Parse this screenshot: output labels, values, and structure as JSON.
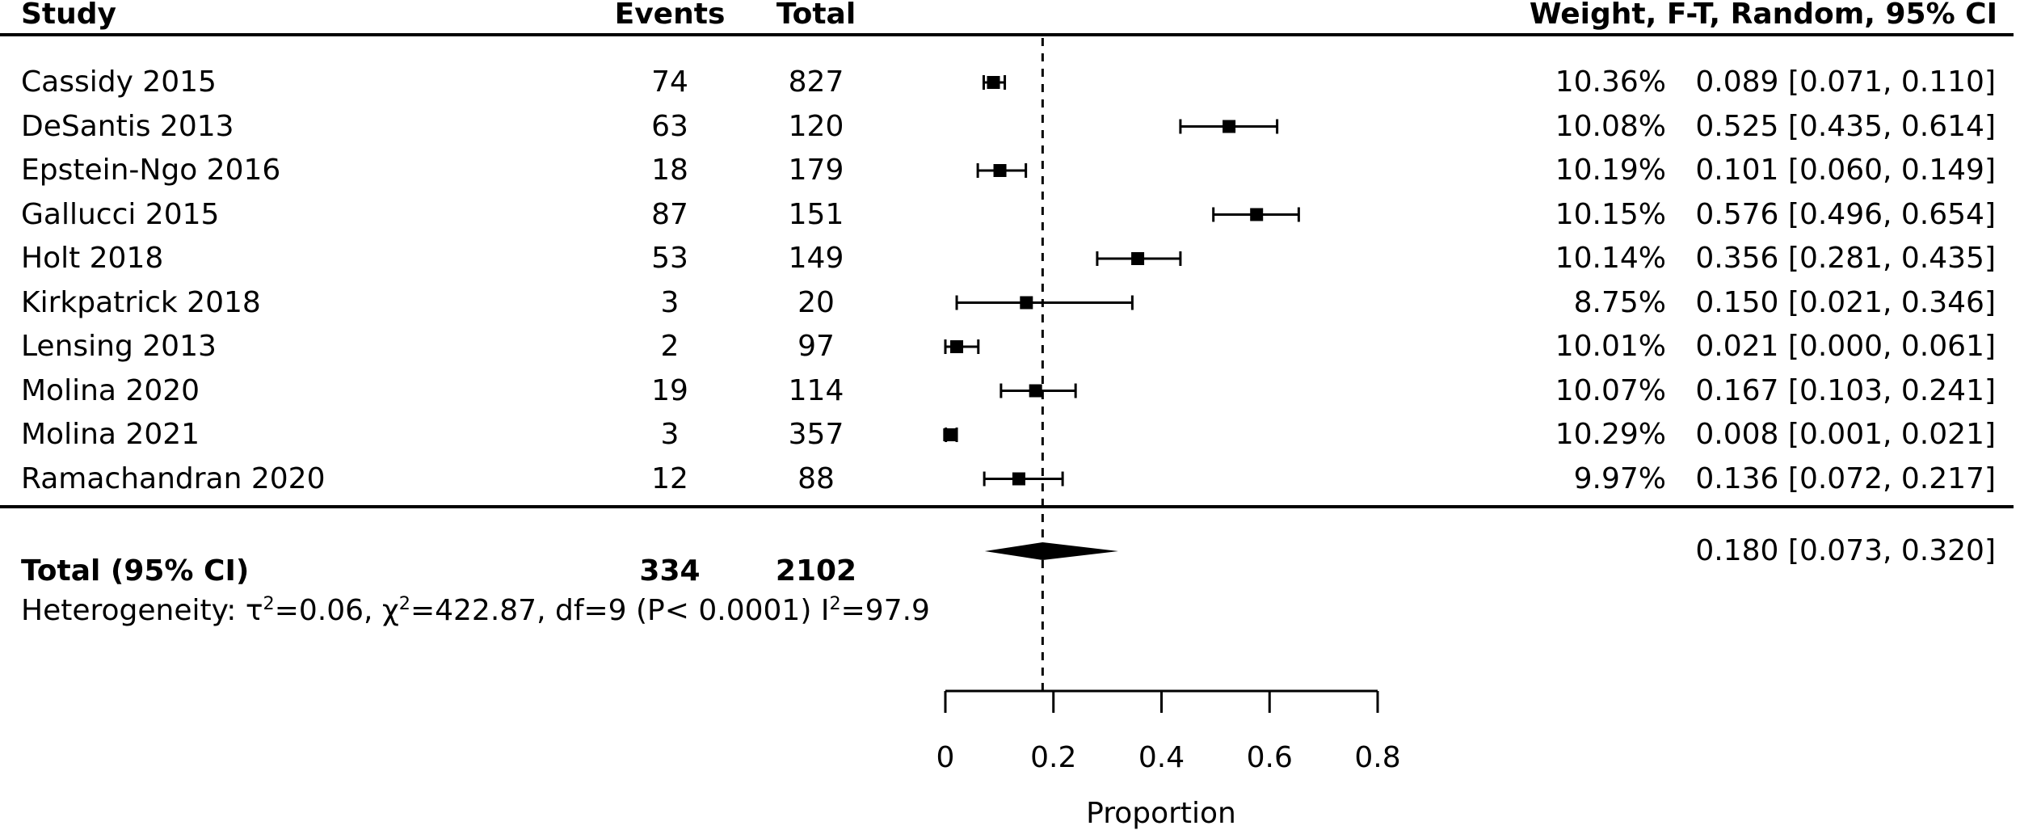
{
  "columns": {
    "study": "Study",
    "events": "Events",
    "total": "Total",
    "weight_ci": "Weight, F-T, Random, 95% CI"
  },
  "chart_data": {
    "type": "forest",
    "xlabel": "Proportion",
    "xlim": [
      0,
      0.8
    ],
    "x_tick_values": [
      0,
      0.2,
      0.4,
      0.6,
      0.8
    ],
    "x_tick_labels": [
      "0",
      "0.2",
      "0.4",
      "0.6",
      "0.8"
    ],
    "ref_line": 0.18,
    "grid": false,
    "marker_color": "#000000",
    "studies": [
      {
        "name": "Cassidy 2015",
        "events": "74",
        "total": "827",
        "weight": "10.36%",
        "est": 0.089,
        "lo": 0.071,
        "hi": 0.11,
        "ci_label": "0.089 [0.071, 0.110]"
      },
      {
        "name": "DeSantis 2013",
        "events": "63",
        "total": "120",
        "weight": "10.08%",
        "est": 0.525,
        "lo": 0.435,
        "hi": 0.614,
        "ci_label": "0.525 [0.435, 0.614]"
      },
      {
        "name": "Epstein-Ngo 2016",
        "events": "18",
        "total": "179",
        "weight": "10.19%",
        "est": 0.101,
        "lo": 0.06,
        "hi": 0.149,
        "ci_label": "0.101 [0.060, 0.149]"
      },
      {
        "name": "Gallucci 2015",
        "events": "87",
        "total": "151",
        "weight": "10.15%",
        "est": 0.576,
        "lo": 0.496,
        "hi": 0.654,
        "ci_label": "0.576 [0.496, 0.654]"
      },
      {
        "name": "Holt 2018",
        "events": "53",
        "total": "149",
        "weight": "10.14%",
        "est": 0.356,
        "lo": 0.281,
        "hi": 0.435,
        "ci_label": "0.356 [0.281, 0.435]"
      },
      {
        "name": "Kirkpatrick 2018",
        "events": "3",
        "total": "20",
        "weight": "8.75%",
        "est": 0.15,
        "lo": 0.021,
        "hi": 0.346,
        "ci_label": "0.150 [0.021, 0.346]"
      },
      {
        "name": "Lensing 2013",
        "events": "2",
        "total": "97",
        "weight": "10.01%",
        "est": 0.021,
        "lo": 0.0,
        "hi": 0.061,
        "ci_label": "0.021 [0.000, 0.061]"
      },
      {
        "name": "Molina 2020",
        "events": "19",
        "total": "114",
        "weight": "10.07%",
        "est": 0.167,
        "lo": 0.103,
        "hi": 0.241,
        "ci_label": "0.167 [0.103, 0.241]"
      },
      {
        "name": "Molina 2021",
        "events": "3",
        "total": "357",
        "weight": "10.29%",
        "est": 0.008,
        "lo": 0.001,
        "hi": 0.021,
        "ci_label": "0.008 [0.001, 0.021]"
      },
      {
        "name": "Ramachandran 2020",
        "events": "12",
        "total": "88",
        "weight": "9.97%",
        "est": 0.136,
        "lo": 0.072,
        "hi": 0.217,
        "ci_label": "0.136 [0.072, 0.217]"
      }
    ],
    "summary": {
      "label": "Total (95% CI)",
      "events": "334",
      "total": "2102",
      "est": 0.18,
      "lo": 0.073,
      "hi": 0.32,
      "ci_label": "0.180 [0.073, 0.320]"
    },
    "heterogeneity_segments": [
      {
        "text": "Heterogeneity: τ"
      },
      {
        "sup": "2"
      },
      {
        "text": "=0.06, χ"
      },
      {
        "sup": "2"
      },
      {
        "text": "=422.87, df=9 (P< 0.0001) I"
      },
      {
        "sup": "2"
      },
      {
        "text": "=97.9"
      }
    ]
  }
}
